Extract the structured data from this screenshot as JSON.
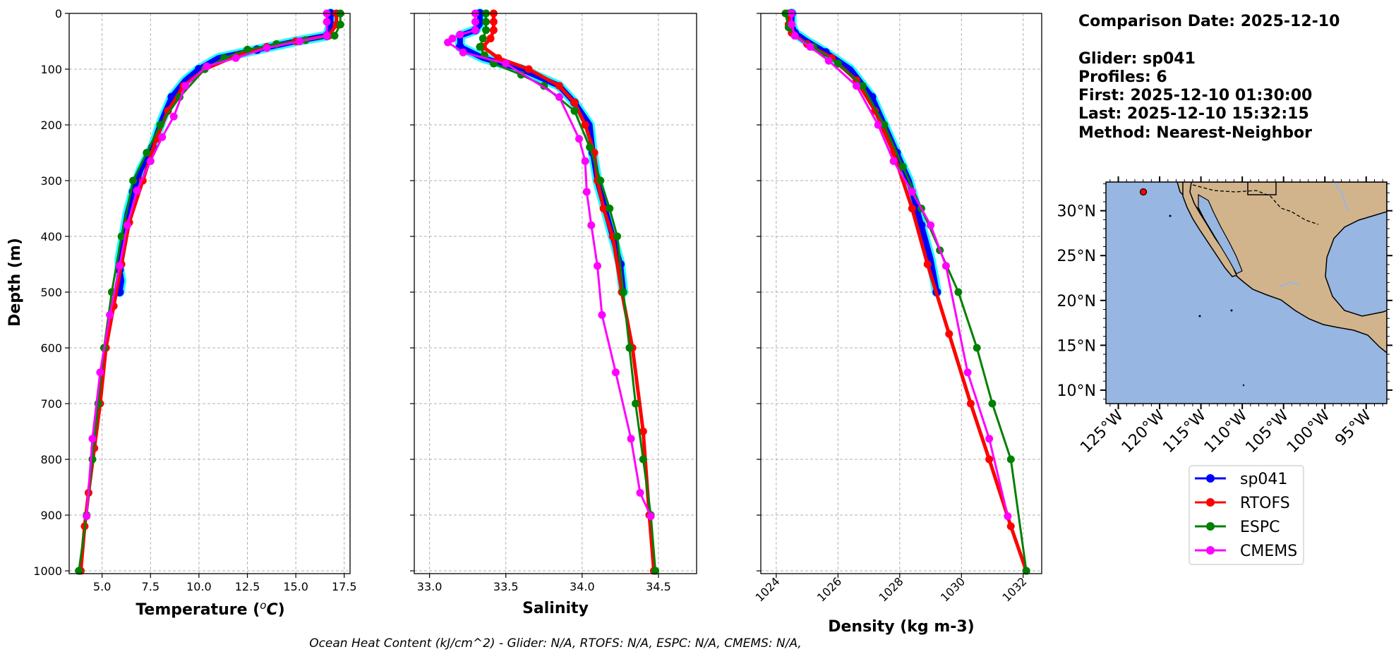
{
  "chart_data": [
    {
      "type": "line",
      "xlabel": "Temperature (°C)",
      "ylabel": "Depth (m)",
      "xlim": [
        3.3,
        17.8
      ],
      "ylim": [
        1005,
        0
      ],
      "xticks": [
        "5.0",
        "7.5",
        "10.0",
        "12.5",
        "15.0",
        "17.5"
      ],
      "yticks": [
        "0",
        "100",
        "200",
        "300",
        "400",
        "500",
        "600",
        "700",
        "800",
        "900",
        "1000"
      ],
      "grid": true,
      "series": [
        {
          "name": "sp041",
          "color": "#0000ff",
          "x": [
            16.8,
            16.8,
            16.6,
            15.0,
            13.0,
            11.0,
            10.0,
            9.3,
            8.6,
            8.1,
            7.6,
            7.0,
            6.6,
            6.3,
            6.1,
            5.9,
            5.9,
            6.0,
            5.9
          ],
          "y": [
            0,
            20,
            40,
            50,
            65,
            80,
            100,
            120,
            150,
            190,
            240,
            280,
            320,
            360,
            400,
            440,
            460,
            480,
            500
          ]
        },
        {
          "name": "RTOFS",
          "color": "#ff0000",
          "x": [
            17.1,
            17.1,
            16.7,
            15.0,
            13.5,
            12.0,
            10.3,
            9.2,
            8.4,
            7.8,
            7.1,
            6.4,
            6.0,
            5.6,
            5.2,
            4.9,
            4.6,
            4.3,
            4.1,
            3.9
          ],
          "y": [
            0,
            20,
            40,
            50,
            60,
            75,
            100,
            130,
            175,
            225,
            300,
            375,
            450,
            525,
            600,
            700,
            780,
            860,
            920,
            1000
          ]
        },
        {
          "name": "ESPC",
          "color": "#008000",
          "x": [
            17.3,
            17.3,
            17.0,
            15.5,
            14.0,
            12.5,
            11.3,
            10.3,
            9.0,
            8.0,
            7.3,
            6.6,
            6.0,
            5.5,
            5.1,
            4.8,
            4.5,
            4.2,
            3.8
          ],
          "y": [
            0,
            20,
            40,
            48,
            55,
            65,
            80,
            100,
            150,
            200,
            250,
            300,
            400,
            500,
            600,
            700,
            800,
            900,
            1000
          ]
        },
        {
          "name": "CMEMS",
          "color": "#ff00ff",
          "x": [
            16.6,
            16.6,
            16.6,
            15.2,
            13.5,
            11.9,
            10.4,
            9.3,
            8.7,
            8.1,
            7.5,
            6.8,
            6.3,
            5.9,
            5.4,
            4.9,
            4.5,
            4.2
          ],
          "y": [
            0,
            15,
            40,
            50,
            62,
            80,
            95,
            130,
            185,
            222,
            265,
            318,
            380,
            453,
            541,
            644,
            763,
            902
          ]
        }
      ]
    },
    {
      "type": "line",
      "xlabel": "Salinity",
      "ylabel": "",
      "xlim": [
        32.9,
        34.75
      ],
      "ylim": [
        1005,
        0
      ],
      "xticks": [
        "33.0",
        "33.5",
        "34.0",
        "34.5"
      ],
      "grid": true,
      "series": [
        {
          "name": "sp041",
          "color": "#0000ff",
          "x": [
            33.33,
            33.33,
            33.3,
            33.2,
            33.2,
            33.35,
            33.6,
            33.85,
            33.95,
            34.05,
            34.07,
            34.1,
            34.15,
            34.2,
            34.25,
            34.27
          ],
          "y": [
            0,
            20,
            30,
            40,
            60,
            80,
            100,
            130,
            160,
            200,
            250,
            300,
            350,
            400,
            450,
            500
          ]
        },
        {
          "name": "RTOFS",
          "color": "#ff0000",
          "x": [
            33.42,
            33.42,
            33.42,
            33.4,
            33.35,
            33.45,
            33.65,
            33.85,
            33.95,
            34.02,
            34.08,
            34.1,
            34.14,
            34.2,
            34.26,
            34.33,
            34.4,
            34.44,
            34.47
          ],
          "y": [
            0,
            15,
            30,
            45,
            60,
            80,
            100,
            130,
            160,
            200,
            250,
            300,
            350,
            400,
            500,
            600,
            750,
            900,
            1000
          ]
        },
        {
          "name": "ESPC",
          "color": "#008000",
          "x": [
            33.37,
            33.37,
            33.37,
            33.35,
            33.33,
            33.36,
            33.42,
            33.6,
            33.75,
            33.95,
            34.05,
            34.12,
            34.18,
            34.23,
            34.27,
            34.31,
            34.35,
            34.4,
            34.45,
            34.48
          ],
          "y": [
            0,
            15,
            30,
            45,
            60,
            75,
            90,
            110,
            130,
            175,
            240,
            300,
            350,
            400,
            500,
            600,
            700,
            800,
            900,
            1000
          ]
        },
        {
          "name": "CMEMS",
          "color": "#ff00ff",
          "x": [
            33.3,
            33.3,
            33.3,
            33.2,
            33.15,
            33.12,
            33.22,
            33.5,
            33.85,
            33.98,
            34.02,
            34.03,
            34.06,
            34.1,
            34.13,
            34.22,
            34.32,
            34.38,
            34.45
          ],
          "y": [
            0,
            15,
            30,
            38,
            45,
            52,
            70,
            90,
            150,
            225,
            265,
            320,
            380,
            453,
            541,
            644,
            763,
            860,
            902
          ]
        }
      ]
    },
    {
      "type": "line",
      "xlabel": "Density (kg m-3)",
      "ylabel": "",
      "xlim": [
        1023.5,
        1032.6
      ],
      "ylim": [
        1005,
        0
      ],
      "xticks": [
        "1024",
        "1026",
        "1028",
        "1030",
        "1032"
      ],
      "grid": true,
      "series": [
        {
          "name": "sp041",
          "color": "#0000ff",
          "x": [
            1024.5,
            1024.5,
            1024.6,
            1025.0,
            1025.6,
            1026.4,
            1027.1,
            1027.5,
            1027.9,
            1028.3,
            1028.7,
            1029.0,
            1029.2
          ],
          "y": [
            0,
            20,
            35,
            50,
            70,
            100,
            150,
            200,
            250,
            300,
            380,
            440,
            500
          ]
        },
        {
          "name": "RTOFS",
          "color": "#ff0000",
          "x": [
            1024.4,
            1024.4,
            1024.5,
            1025.0,
            1025.8,
            1026.6,
            1027.2,
            1027.8,
            1028.4,
            1028.9,
            1029.6,
            1030.3,
            1030.9,
            1031.6,
            1032.1
          ],
          "y": [
            0,
            20,
            35,
            55,
            80,
            120,
            175,
            250,
            350,
            450,
            575,
            700,
            800,
            920,
            1000
          ]
        },
        {
          "name": "ESPC",
          "color": "#008000",
          "x": [
            1024.3,
            1024.4,
            1024.6,
            1025.2,
            1026.0,
            1026.8,
            1027.5,
            1028.1,
            1028.7,
            1029.3,
            1029.9,
            1030.5,
            1031.0,
            1031.6,
            1032.1
          ],
          "y": [
            0,
            25,
            40,
            60,
            90,
            130,
            200,
            275,
            350,
            425,
            500,
            600,
            700,
            800,
            1000
          ]
        },
        {
          "name": "CMEMS",
          "color": "#ff00ff",
          "x": [
            1024.5,
            1024.5,
            1024.6,
            1025.1,
            1025.7,
            1026.6,
            1027.3,
            1027.8,
            1028.4,
            1029.0,
            1029.5,
            1030.2,
            1030.9,
            1031.5
          ],
          "y": [
            0,
            20,
            40,
            60,
            85,
            130,
            200,
            265,
            320,
            380,
            453,
            644,
            763,
            902
          ]
        }
      ]
    }
  ],
  "info": {
    "comparison_date": "Comparison Date: 2025-12-10",
    "glider": "Glider: sp041",
    "profiles": "Profiles: 6",
    "first": "First: 2025-12-10 01:30:00",
    "last": "Last: 2025-12-10 15:32:15",
    "method": "Method: Nearest-Neighbor"
  },
  "map": {
    "lat_labels": [
      "30°N",
      "25°N",
      "20°N",
      "15°N",
      "10°N"
    ],
    "lon_labels": [
      "125°W",
      "120°W",
      "115°W",
      "110°W",
      "105°W",
      "100°W",
      "95°W"
    ],
    "ocean_color": "#97b6e1",
    "land_color": "#d2b48c",
    "glider_marker_color": "#ff0000"
  },
  "legend": {
    "position": "below-map",
    "items": [
      {
        "label": "sp041",
        "color": "#0000ff"
      },
      {
        "label": "RTOFS",
        "color": "#ff0000"
      },
      {
        "label": "ESPC",
        "color": "#008000"
      },
      {
        "label": "CMEMS",
        "color": "#ff00ff"
      }
    ]
  },
  "footer": "Ocean Heat Content (kJ/cm^2) - Glider: N/A,  RTOFS: N/A,  ESPC: N/A,  CMEMS: N/A,"
}
